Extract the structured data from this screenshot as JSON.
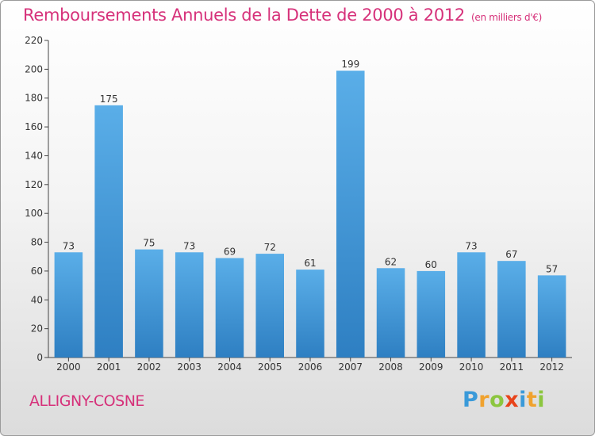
{
  "header": {
    "title": "Remboursements Annuels de la Dette de 2000 à 2012",
    "subtitle": "(en milliers d'€)"
  },
  "footer": {
    "commune": "ALLIGNY-COSNE",
    "logo_letters": [
      {
        "ch": "P",
        "color": "#3a9ad9"
      },
      {
        "ch": "r",
        "color": "#f0a22e"
      },
      {
        "ch": "o",
        "color": "#8cc63f"
      },
      {
        "ch": "x",
        "color": "#e8431a"
      },
      {
        "ch": "i",
        "color": "#3a9ad9"
      },
      {
        "ch": "t",
        "color": "#f0a22e"
      },
      {
        "ch": "i",
        "color": "#8cc63f"
      }
    ]
  },
  "chart_data": {
    "type": "bar",
    "title": "Remboursements Annuels de la Dette de 2000 à 2012",
    "subtitle": "(en milliers d'€)",
    "categories": [
      "2000",
      "2001",
      "2002",
      "2003",
      "2004",
      "2005",
      "2006",
      "2007",
      "2008",
      "2009",
      "2010",
      "2011",
      "2012"
    ],
    "values": [
      73,
      175,
      75,
      73,
      69,
      72,
      61,
      199,
      62,
      60,
      73,
      67,
      57
    ],
    "ylim": [
      0,
      220
    ],
    "yticks": [
      0,
      20,
      40,
      60,
      80,
      100,
      120,
      140,
      160,
      180,
      200,
      220
    ],
    "xlabel": "",
    "ylabel": "",
    "grid": false,
    "legend": "none",
    "bar_color_top": "#5aaee8",
    "bar_color_bottom": "#2e7fc2"
  }
}
